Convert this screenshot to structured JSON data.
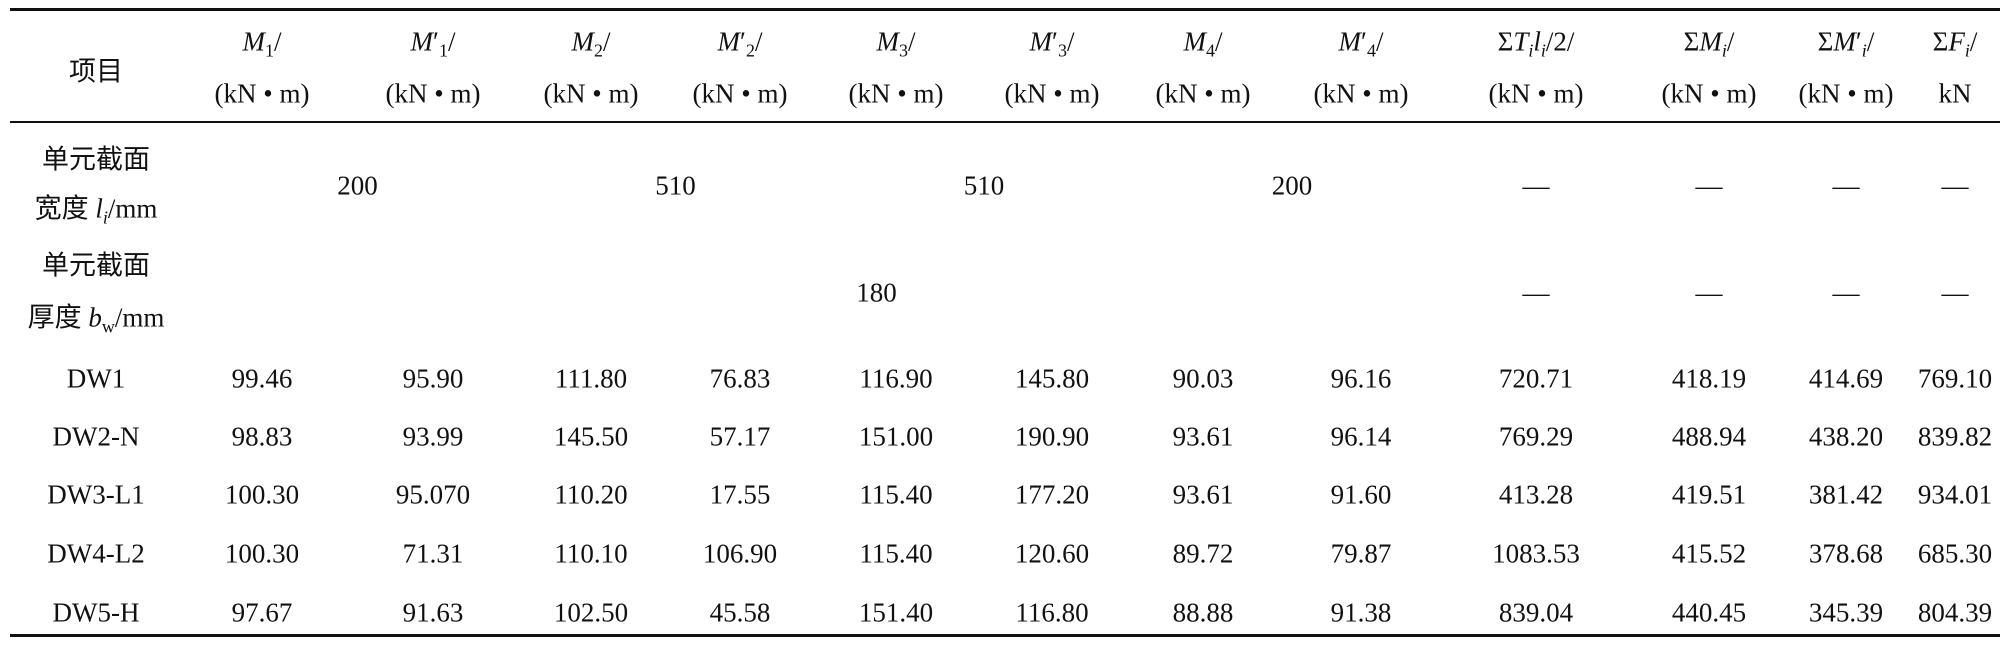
{
  "table": {
    "header": [
      {
        "line1": [
          {
            "t": "项目"
          }
        ]
      },
      {
        "line1": [
          {
            "t": "M",
            "style": "i"
          },
          {
            "t": "1",
            "style": "sub"
          },
          {
            "t": "/"
          }
        ],
        "line2": "(kN • m)"
      },
      {
        "line1": [
          {
            "t": "M",
            "style": "i"
          },
          {
            "t": "′"
          },
          {
            "t": "1",
            "style": "sub"
          },
          {
            "t": "/"
          }
        ],
        "line2": "(kN • m)"
      },
      {
        "line1": [
          {
            "t": "M",
            "style": "i"
          },
          {
            "t": "2",
            "style": "sub"
          },
          {
            "t": "/"
          }
        ],
        "line2": "(kN • m)"
      },
      {
        "line1": [
          {
            "t": "M",
            "style": "i"
          },
          {
            "t": "′"
          },
          {
            "t": "2",
            "style": "sub"
          },
          {
            "t": "/"
          }
        ],
        "line2": "(kN • m)"
      },
      {
        "line1": [
          {
            "t": "M",
            "style": "i"
          },
          {
            "t": "3",
            "style": "sub"
          },
          {
            "t": "/"
          }
        ],
        "line2": "(kN • m)"
      },
      {
        "line1": [
          {
            "t": "M",
            "style": "i"
          },
          {
            "t": "′"
          },
          {
            "t": "3",
            "style": "sub"
          },
          {
            "t": "/"
          }
        ],
        "line2": "(kN • m)"
      },
      {
        "line1": [
          {
            "t": "M",
            "style": "i"
          },
          {
            "t": "4",
            "style": "sub"
          },
          {
            "t": "/"
          }
        ],
        "line2": "(kN • m)"
      },
      {
        "line1": [
          {
            "t": "M",
            "style": "i"
          },
          {
            "t": "′"
          },
          {
            "t": "4",
            "style": "sub"
          },
          {
            "t": "/"
          }
        ],
        "line2": "(kN • m)"
      },
      {
        "line1": [
          {
            "t": "Σ"
          },
          {
            "t": "T",
            "style": "i"
          },
          {
            "t": "i",
            "style": "isub"
          },
          {
            "t": "l",
            "style": "i"
          },
          {
            "t": "i",
            "style": "isub"
          },
          {
            "t": "/2/"
          }
        ],
        "line2": "(kN • m)"
      },
      {
        "line1": [
          {
            "t": "Σ"
          },
          {
            "t": "M",
            "style": "i"
          },
          {
            "t": "i",
            "style": "isub"
          },
          {
            "t": "/"
          }
        ],
        "line2": "(kN • m)"
      },
      {
        "line1": [
          {
            "t": "Σ"
          },
          {
            "t": "M",
            "style": "i"
          },
          {
            "t": "′"
          },
          {
            "t": "i",
            "style": "isub"
          },
          {
            "t": "/"
          }
        ],
        "line2": "(kN • m)"
      },
      {
        "line1": [
          {
            "t": "Σ"
          },
          {
            "t": "F",
            "style": "i"
          },
          {
            "t": "i",
            "style": "isub"
          },
          {
            "t": "/"
          }
        ],
        "line2": "kN"
      }
    ],
    "rows": [
      {
        "label": [
          [
            {
              "t": "单元截面"
            }
          ],
          [
            {
              "t": "宽度 "
            },
            {
              "t": "l",
              "style": "i"
            },
            {
              "t": "i",
              "style": "isub"
            },
            {
              "t": "/mm"
            }
          ]
        ],
        "cells": [
          {
            "t": "200",
            "span": 2
          },
          {
            "t": "510",
            "span": 2
          },
          {
            "t": "510",
            "span": 2
          },
          {
            "t": "200",
            "span": 2
          },
          {
            "t": "—"
          },
          {
            "t": "—"
          },
          {
            "t": "—"
          },
          {
            "t": "—"
          }
        ]
      },
      {
        "label": [
          [
            {
              "t": "单元截面"
            }
          ],
          [
            {
              "t": "厚度 "
            },
            {
              "t": "b",
              "style": "i"
            },
            {
              "t": "w",
              "style": "sub"
            },
            {
              "t": "/mm"
            }
          ]
        ],
        "cells": [
          {
            "t": "180",
            "span": 8
          },
          {
            "t": "—"
          },
          {
            "t": "—"
          },
          {
            "t": "—"
          },
          {
            "t": "—"
          }
        ]
      },
      {
        "label": [
          [
            {
              "t": "DW1"
            }
          ]
        ],
        "cells": [
          "99.46",
          "95.90",
          "111.80",
          "76.83",
          "116.90",
          "145.80",
          "90.03",
          "96.16",
          "720.71",
          "418.19",
          "414.69",
          "769.10"
        ]
      },
      {
        "label": [
          [
            {
              "t": "DW2-N"
            }
          ]
        ],
        "cells": [
          "98.83",
          "93.99",
          "145.50",
          "57.17",
          "151.00",
          "190.90",
          "93.61",
          "96.14",
          "769.29",
          "488.94",
          "438.20",
          "839.82"
        ]
      },
      {
        "label": [
          [
            {
              "t": "DW3-L1"
            }
          ]
        ],
        "cells": [
          "100.30",
          "95.070",
          "110.20",
          "17.55",
          "115.40",
          "177.20",
          "93.61",
          "91.60",
          "413.28",
          "419.51",
          "381.42",
          "934.01"
        ]
      },
      {
        "label": [
          [
            {
              "t": "DW4-L2"
            }
          ]
        ],
        "cells": [
          "100.30",
          "71.31",
          "110.10",
          "106.90",
          "115.40",
          "120.60",
          "89.72",
          "79.87",
          "1083.53",
          "415.52",
          "378.68",
          "685.30"
        ]
      },
      {
        "label": [
          [
            {
              "t": "DW5-H"
            }
          ]
        ],
        "cells": [
          "97.67",
          "91.63",
          "102.50",
          "45.58",
          "151.40",
          "116.80",
          "88.88",
          "91.38",
          "839.04",
          "440.45",
          "345.39",
          "804.39"
        ]
      }
    ]
  }
}
